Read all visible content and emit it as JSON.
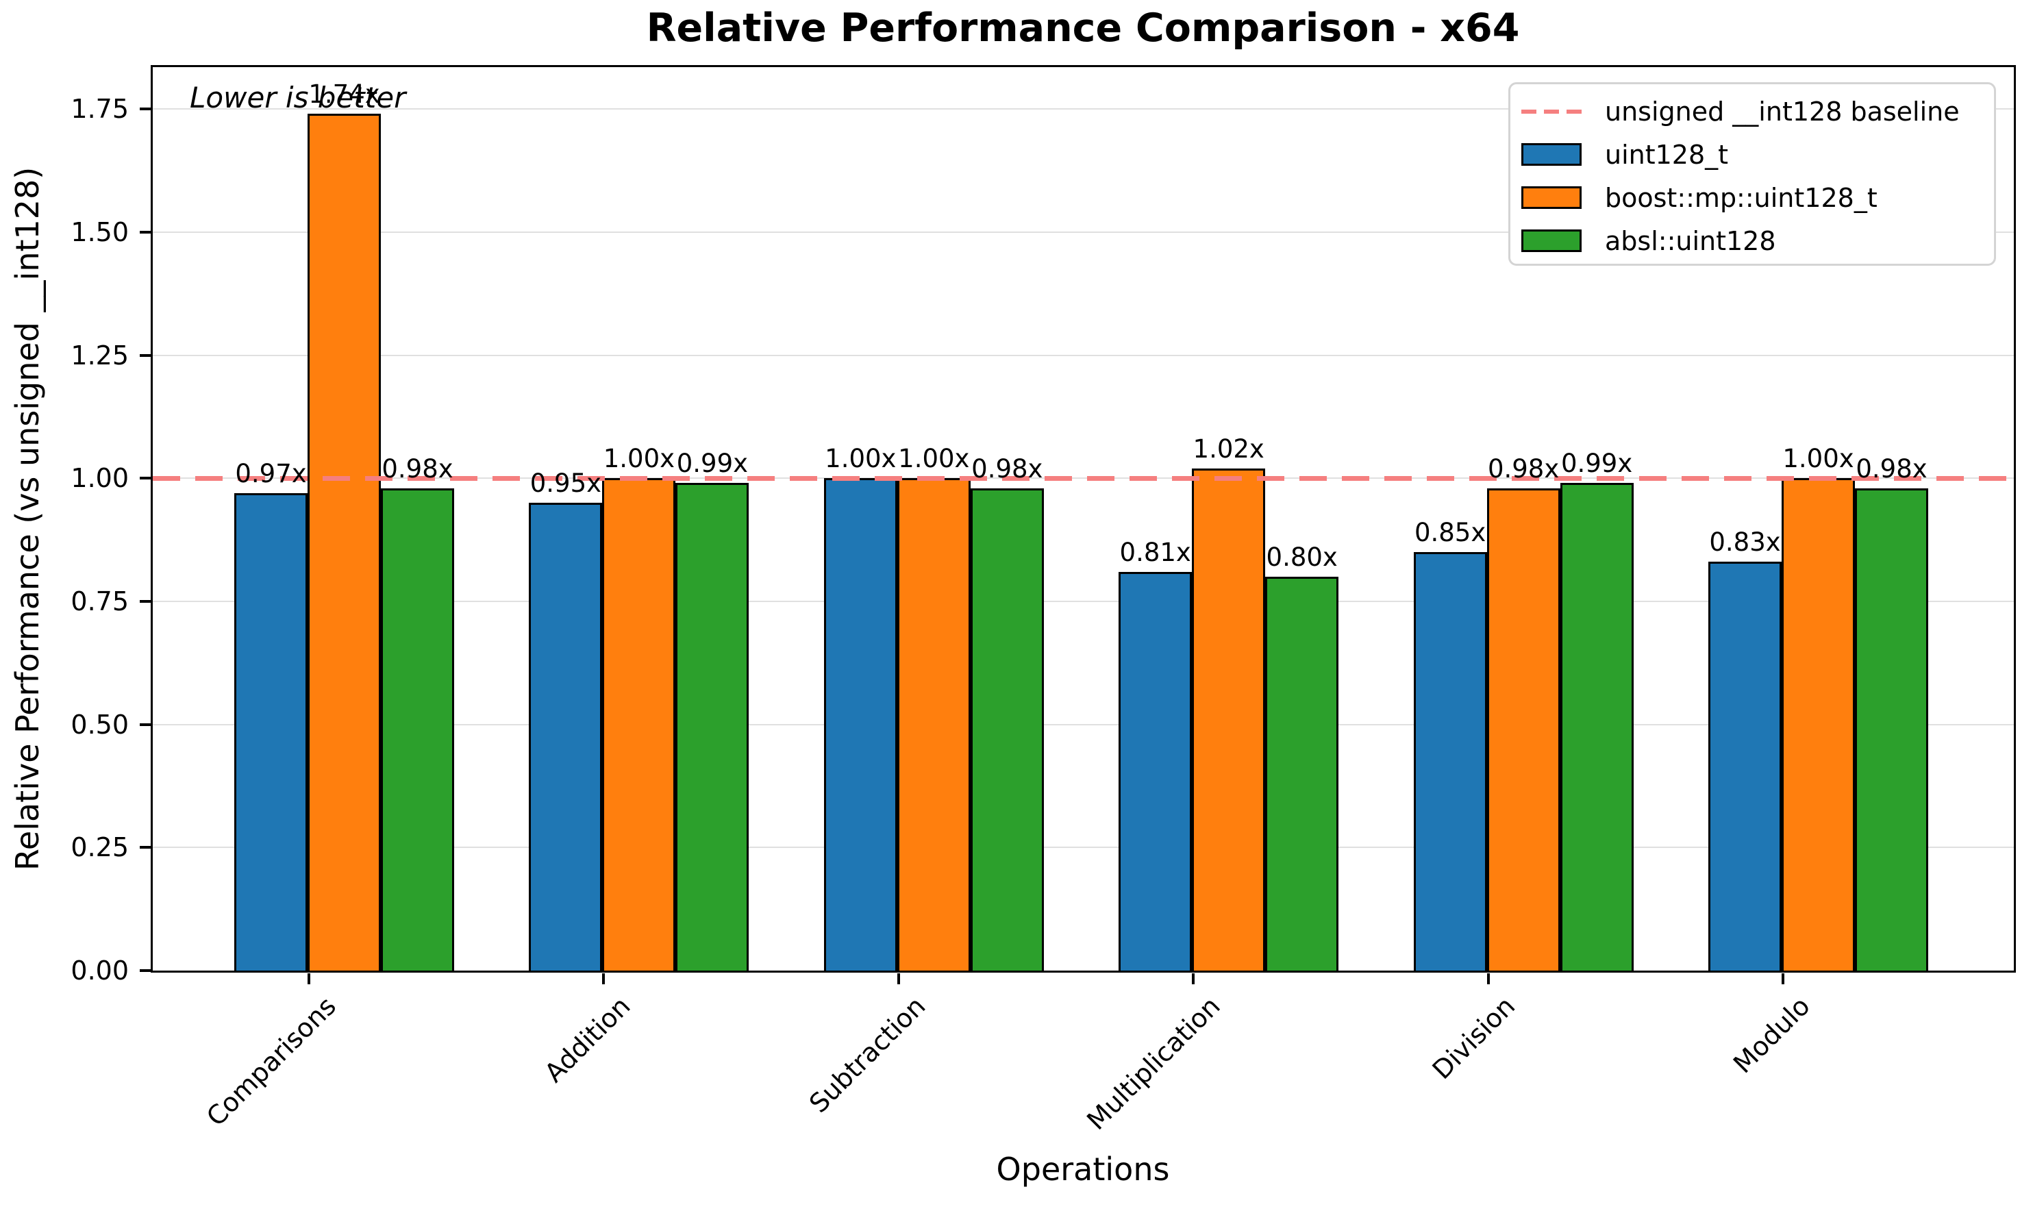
{
  "chart_data": {
    "type": "bar",
    "title": "Relative Performance Comparison - x64",
    "xlabel": "Operations",
    "ylabel": "Relative Performance (vs unsigned __int128)",
    "annotation": "Lower is better",
    "categories": [
      "Comparisons",
      "Addition",
      "Subtraction",
      "Multiplication",
      "Division",
      "Modulo"
    ],
    "series": [
      {
        "name": "uint128_t",
        "color": "#1f77b4",
        "values": [
          0.97,
          0.95,
          1.0,
          0.81,
          0.85,
          0.83
        ],
        "labels": [
          "0.97x",
          "0.95x",
          "1.00x",
          "0.81x",
          "0.85x",
          "0.83x"
        ]
      },
      {
        "name": "boost::mp::uint128_t",
        "color": "#ff7f0e",
        "values": [
          1.74,
          1.0,
          1.0,
          1.02,
          0.98,
          1.0
        ],
        "labels": [
          "1.74x",
          "1.00x",
          "1.00x",
          "1.02x",
          "0.98x",
          "1.00x"
        ]
      },
      {
        "name": "absl::uint128",
        "color": "#2ca02c",
        "values": [
          0.98,
          0.99,
          0.98,
          0.8,
          0.99,
          0.98
        ],
        "labels": [
          "0.98x",
          "0.99x",
          "0.98x",
          "0.80x",
          "0.99x",
          "0.98x"
        ]
      }
    ],
    "baseline": {
      "value": 1.0,
      "label": "unsigned __int128 baseline",
      "color": "#f57f7f",
      "style": "dashed"
    },
    "yticks": [
      0.0,
      0.25,
      0.5,
      0.75,
      1.0,
      1.25,
      1.5,
      1.75
    ],
    "ytick_labels": [
      "0.00",
      "0.25",
      "0.50",
      "0.75",
      "1.00",
      "1.25",
      "1.50",
      "1.75"
    ],
    "ylim": [
      0,
      1.835
    ],
    "grid": "horizontal",
    "legend_position": "upper-right",
    "bar_edge_color": "#000000",
    "background_color": "#ffffff"
  }
}
